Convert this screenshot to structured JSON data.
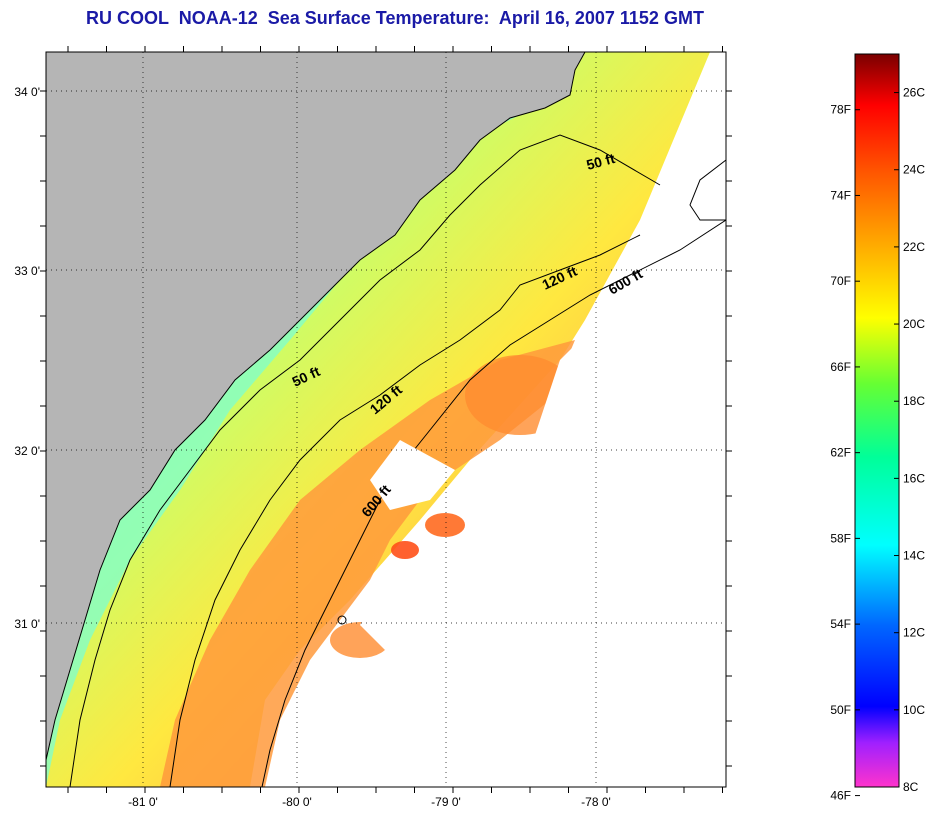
{
  "title": "RU COOL  NOAA-12  Sea Surface Temperature:  April 16, 2007 1152 GMT",
  "map": {
    "lat_labels": [
      "34 0'",
      "33 0'",
      "32 0'",
      "31 0'"
    ],
    "lon_labels": [
      "-81 0'",
      "-80 0'",
      "-79 0'",
      "-78 0'"
    ],
    "isobath_labels": [
      "50 ft",
      "120 ft",
      "600 ft",
      "50 ft",
      "120 ft",
      "600 ft"
    ],
    "colors": {
      "land": "#b5b5b5",
      "no_data": "#ffffff",
      "coastline": "#000000"
    }
  },
  "colorbar": {
    "fahrenheit_labels": [
      "78F",
      "74F",
      "70F",
      "66F",
      "62F",
      "58F",
      "54F",
      "50F",
      "46F"
    ],
    "celsius_labels": [
      "26C",
      "24C",
      "22C",
      "20C",
      "18C",
      "16C",
      "14C",
      "12C",
      "10C",
      "8C"
    ],
    "range_c": [
      8,
      27
    ],
    "colors": [
      "#ff33cc",
      "#7a00ff",
      "#0000ff",
      "#0099ff",
      "#00ffff",
      "#00ff99",
      "#66ff33",
      "#ffff00",
      "#ffaa00",
      "#ff5500",
      "#ff0000",
      "#7a0000"
    ]
  }
}
